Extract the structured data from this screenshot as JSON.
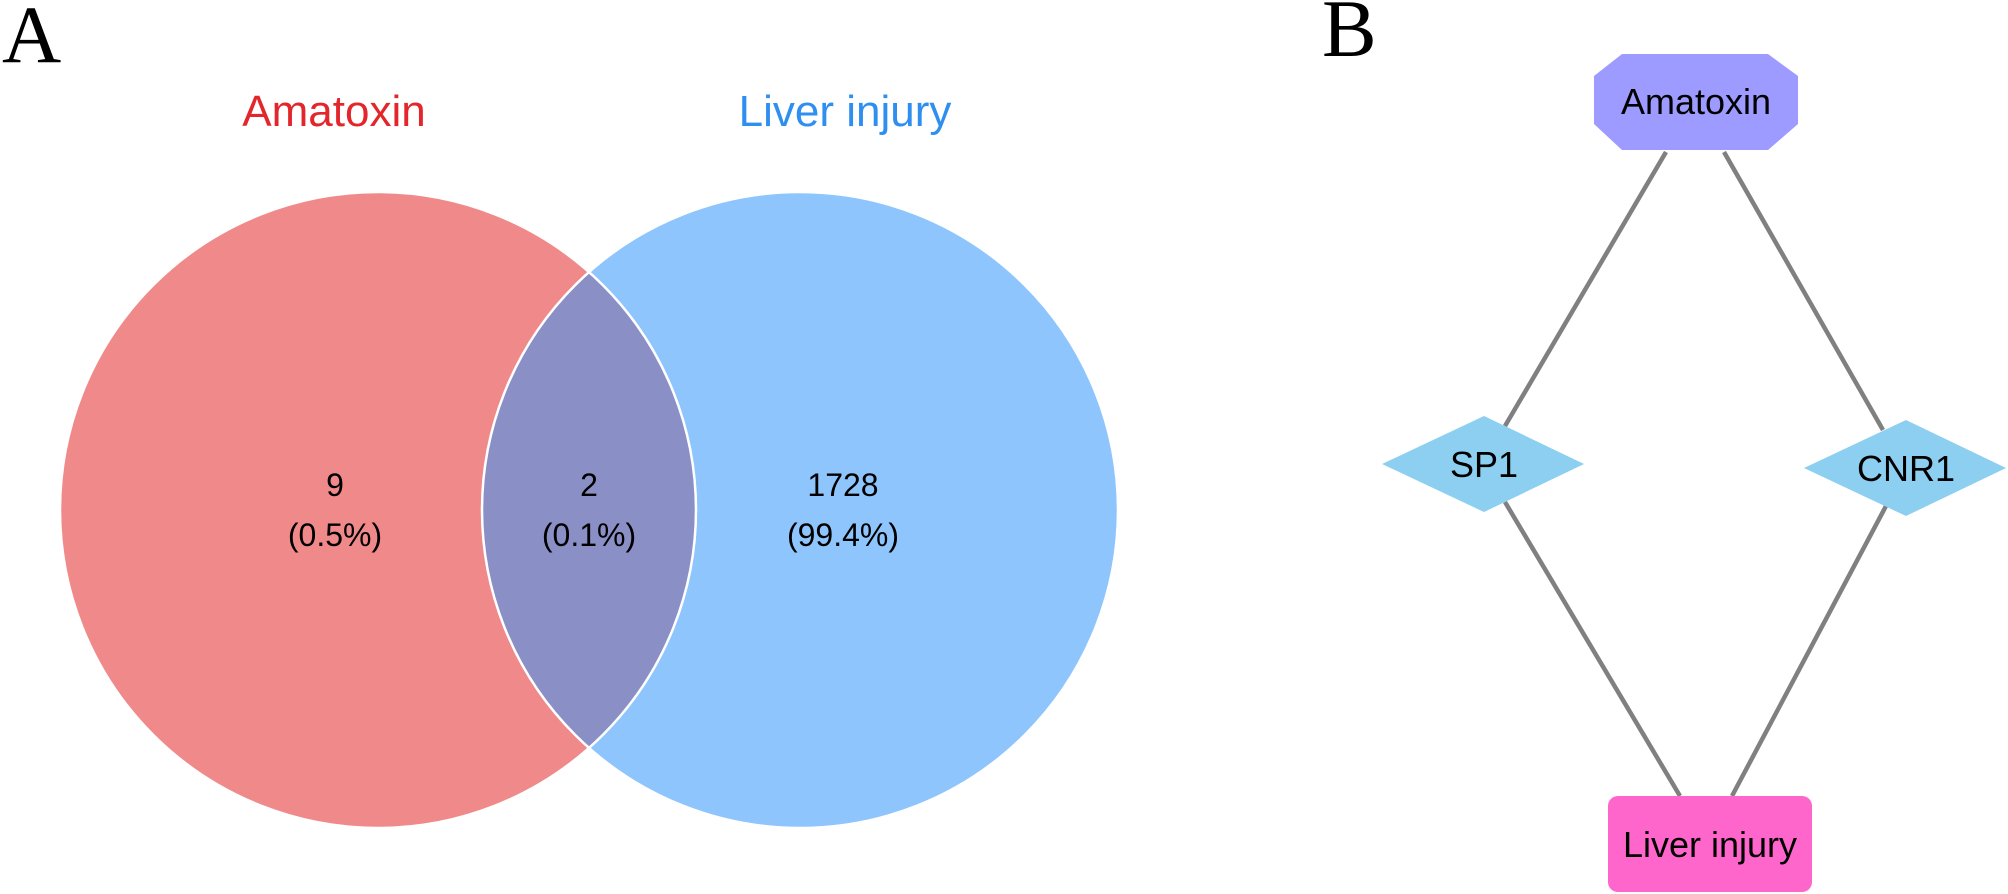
{
  "panels": {
    "a_label": "A",
    "b_label": "B"
  },
  "venn": {
    "sets": [
      {
        "name": "Amatoxin",
        "color": "#f08a8a",
        "title_color": "#e3262b"
      },
      {
        "name": "Liver injury",
        "color": "#8ec5fc",
        "title_color": "#2e8ff0"
      }
    ],
    "intersection_color": "#8a8fc6",
    "regions": {
      "left_only": {
        "count": "9",
        "percent": "(0.5%)"
      },
      "overlap": {
        "count": "2",
        "percent": "(0.1%)"
      },
      "right_only": {
        "count": "1728",
        "percent": "(99.4%)"
      }
    }
  },
  "network": {
    "nodes": {
      "amatoxin": {
        "label": "Amatoxin",
        "shape": "octagon",
        "color": "#9d9bff"
      },
      "sp1": {
        "label": "SP1",
        "shape": "diamond",
        "color": "#8ccff0"
      },
      "cnr1": {
        "label": "CNR1",
        "shape": "diamond",
        "color": "#8ccff0"
      },
      "liver": {
        "label": "Liver injury",
        "shape": "round-rectangle",
        "color": "#ff66cc"
      }
    },
    "edges": [
      [
        "amatoxin",
        "sp1"
      ],
      [
        "amatoxin",
        "cnr1"
      ],
      [
        "sp1",
        "liver"
      ],
      [
        "cnr1",
        "liver"
      ]
    ],
    "edge_color": "#808080"
  }
}
